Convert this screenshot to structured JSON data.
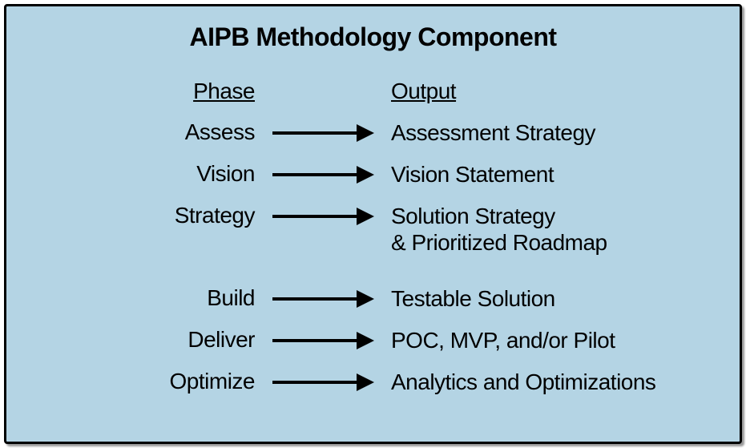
{
  "diagram": {
    "type": "flowchart",
    "title": "AIPB Methodology Component",
    "background_color": "#b4d4e4",
    "border_color": "#000000",
    "border_width": 3,
    "text_color": "#000000",
    "title_fontsize": 32,
    "body_fontsize": 28,
    "arrow_color": "#000000",
    "arrow_line_width": 4,
    "arrow_length": 127,
    "headers": {
      "phase": "Phase",
      "output": "Output"
    },
    "rows": [
      {
        "phase": "Assess",
        "output": "Assessment Strategy"
      },
      {
        "phase": "Vision",
        "output": "Vision Statement"
      },
      {
        "phase": "Strategy",
        "output": "Solution Strategy\n& Prioritized Roadmap"
      },
      {
        "phase": "Build",
        "output": "Testable Solution"
      },
      {
        "phase": "Deliver",
        "output": "POC, MVP, and/or Pilot"
      },
      {
        "phase": "Optimize",
        "output": "Analytics and Optimizations"
      }
    ],
    "group_break_after_index": 2
  }
}
